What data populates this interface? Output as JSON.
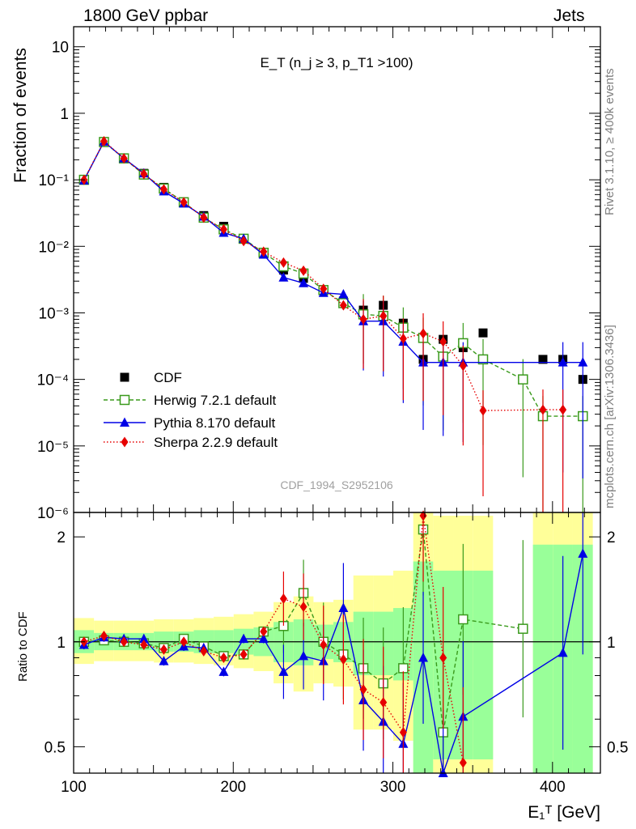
{
  "header": {
    "left": "1800 GeV ppbar",
    "right": "Jets"
  },
  "top_ylabel": "Fraction of events",
  "ratio_ylabel": "Ratio to CDF",
  "side_text_top": "Rivet 3.1.10, ≥ 400k events",
  "side_text_bottom": "mcplots.cern.ch [arXiv:1306.3436]",
  "analysis_id": "CDF_1994_S2952106",
  "xlabel": "E₁ᵀ [GeV]",
  "chart_data": [
    {
      "type": "scatter",
      "panel": "main",
      "title": "E_T (n_j ≥ 3, p_T1 >100)",
      "ylabel": "Fraction of events",
      "yscale": "log",
      "ylim": [
        1e-06,
        20
      ],
      "xlim": [
        100,
        430
      ],
      "ytick_labels": [
        "10⁻⁶",
        "10⁻⁵",
        "10⁻⁴",
        "10⁻³",
        "10⁻²",
        "10⁻¹",
        "1",
        "10"
      ],
      "legend_position": "bottom-left",
      "x": [
        106.5,
        119,
        131.5,
        144,
        156.5,
        169,
        181.5,
        194,
        206.5,
        219,
        231.5,
        244,
        256.5,
        269,
        281.5,
        294,
        306.5,
        319,
        331.5,
        344,
        356.5,
        381.5,
        394,
        406.5,
        419
      ],
      "series": [
        {
          "name": "CDF",
          "color": "#000000",
          "marker": "square",
          "y": [
            0.1,
            0.37,
            0.21,
            0.125,
            0.077,
            0.046,
            0.029,
            0.02,
            0.013,
            0.0077,
            0.0044,
            0.0033,
            0.0022,
            0.0015,
            0.0011,
            0.0013,
            0.0007,
            0.0002,
            0.0004,
            0.0003,
            0.0005,
            0.0001,
            0.0002,
            0.0002,
            0.0001
          ]
        },
        {
          "name": "Herwig 7.2.1 default",
          "color": "#3a9a1c",
          "marker": "open-square",
          "x": [
            106.5,
            119,
            131.5,
            144,
            156.5,
            169,
            181.5,
            194,
            206.5,
            219,
            231.5,
            244,
            256.5,
            269,
            281.5,
            294,
            306.5,
            319,
            331.5,
            344,
            356.5,
            381.5,
            394,
            419
          ],
          "y": [
            0.1,
            0.37,
            0.21,
            0.12,
            0.074,
            0.046,
            0.027,
            0.018,
            0.013,
            0.008,
            0.005,
            0.0039,
            0.0022,
            0.0014,
            0.00095,
            0.0009,
            0.0006,
            0.00042,
            0.00022,
            0.00035,
            0.0002,
            0.0001,
            2.8e-05,
            2.8e-05
          ]
        },
        {
          "name": "Pythia 8.170 default",
          "color": "#0000e6",
          "marker": "triangle",
          "x": [
            106.5,
            119,
            131.5,
            144,
            156.5,
            169,
            181.5,
            194,
            206.5,
            219,
            231.5,
            244,
            256.5,
            269,
            281.5,
            294,
            306.5,
            319,
            331.5,
            344,
            406.5,
            419
          ],
          "y": [
            0.098,
            0.375,
            0.21,
            0.125,
            0.067,
            0.044,
            0.028,
            0.016,
            0.013,
            0.0075,
            0.0034,
            0.0028,
            0.002,
            0.0019,
            0.00075,
            0.00075,
            0.00037,
            0.00018,
            0.00018,
            0.00018,
            0.00018,
            0.00018
          ]
        },
        {
          "name": "Sherpa 2.2.9 default",
          "color": "#e60000",
          "marker": "diamond",
          "x": [
            106.5,
            119,
            131.5,
            144,
            156.5,
            169,
            181.5,
            194,
            206.5,
            219,
            231.5,
            244,
            256.5,
            269,
            281.5,
            294,
            306.5,
            319,
            331.5,
            344,
            356.5,
            394,
            406.5
          ],
          "y": [
            0.1,
            0.38,
            0.21,
            0.122,
            0.072,
            0.046,
            0.027,
            0.018,
            0.012,
            0.0083,
            0.0057,
            0.0043,
            0.0023,
            0.0013,
            0.0008,
            0.0009,
            0.00041,
            0.00049,
            0.00037,
            0.00016,
            3.4e-05,
            3.5e-05,
            3.5e-05
          ]
        }
      ]
    },
    {
      "type": "scatter",
      "panel": "ratio",
      "ylabel": "Ratio to CDF",
      "yscale": "log",
      "ylim": [
        0.42,
        2.35
      ],
      "xlim": [
        100,
        430
      ],
      "ytick_labels": [
        "0.5",
        "1",
        "2"
      ],
      "xtick_labels": [
        "100",
        "200",
        "300",
        "400"
      ],
      "band_inner_color": "#99ff99",
      "band_outer_color": "#ffff99",
      "series": [
        {
          "name": "Herwig 7.2.1 default",
          "color": "#3a9a1c",
          "x": [
            106.5,
            119,
            131.5,
            144,
            156.5,
            169,
            181.5,
            194,
            206.5,
            219,
            231.5,
            244,
            256.5,
            269,
            281.5,
            294,
            306.5,
            319,
            331.5,
            344,
            381.5
          ],
          "y": [
            1.0,
            1.01,
            1.0,
            0.99,
            0.96,
            1.02,
            0.97,
            0.91,
            0.92,
            1.07,
            1.11,
            1.38,
            1.0,
            0.92,
            0.84,
            0.76,
            0.84,
            2.1,
            0.55,
            1.16,
            1.09
          ]
        },
        {
          "name": "Pythia 8.170 default",
          "color": "#0000e6",
          "x": [
            106.5,
            119,
            131.5,
            144,
            156.5,
            169,
            181.5,
            194,
            206.5,
            219,
            231.5,
            244,
            256.5,
            269,
            281.5,
            294,
            306.5,
            319,
            331.5,
            344,
            406.5,
            419
          ],
          "y": [
            0.98,
            1.03,
            1.02,
            1.02,
            0.88,
            0.97,
            0.96,
            0.82,
            1.02,
            1.02,
            0.82,
            0.91,
            0.88,
            1.25,
            0.68,
            0.59,
            0.51,
            0.9,
            0.4,
            0.61,
            0.93,
            1.79
          ]
        },
        {
          "name": "Sherpa 2.2.9 default",
          "color": "#e60000",
          "x": [
            106.5,
            119,
            131.5,
            144,
            156.5,
            169,
            181.5,
            194,
            206.5,
            219,
            231.5,
            244,
            256.5,
            269,
            281.5,
            294,
            306.5,
            319,
            331.5,
            344
          ],
          "y": [
            1.0,
            1.04,
            1.0,
            0.98,
            0.95,
            1.0,
            0.94,
            0.9,
            0.92,
            1.07,
            1.33,
            1.26,
            0.98,
            0.89,
            0.73,
            0.67,
            0.55,
            2.3,
            0.9,
            0.45
          ]
        }
      ]
    }
  ]
}
